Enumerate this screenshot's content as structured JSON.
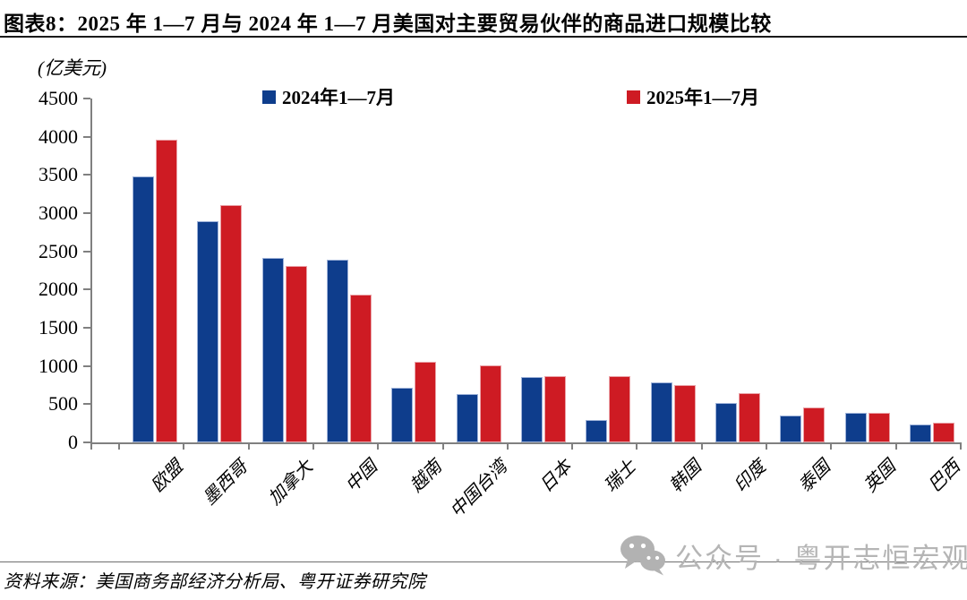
{
  "page": {
    "title": "图表8：2025 年 1—7 月与 2024 年 1—7 月美国对主要贸易伙伴的商品进口规模比较",
    "source": "资料来源：美国商务部经济分析局、粤开证券研究院",
    "watermark_text": "公众号 · 粤开志恒宏观"
  },
  "chart_data": {
    "type": "bar",
    "title": "2025年1—7月与2024年1—7月美国对主要贸易伙伴的商品进口规模比较",
    "unit_label": "(亿美元)",
    "categories": [
      "欧盟",
      "墨西哥",
      "加拿大",
      "中国",
      "越南",
      "中国台湾",
      "日本",
      "瑞士",
      "韩国",
      "印度",
      "泰国",
      "英国",
      "巴西"
    ],
    "series": [
      {
        "name": "2024年1—7月",
        "color": "#0E3D8C",
        "edge": "#9fb3d9",
        "values": [
          3480,
          2900,
          2410,
          2390,
          720,
          630,
          850,
          290,
          780,
          520,
          350,
          390,
          240
        ]
      },
      {
        "name": "2025年1—7月",
        "color": "#CE1B23",
        "edge": "#eaa3a8",
        "values": [
          3960,
          3100,
          2310,
          1930,
          1050,
          1010,
          870,
          870,
          750,
          650,
          460,
          390,
          260
        ]
      }
    ],
    "ylabel": "",
    "xlabel": "",
    "ylim": [
      0,
      4500
    ],
    "y_ticks": [
      0,
      500,
      1000,
      1500,
      2000,
      2500,
      3000,
      3500,
      4000,
      4500
    ],
    "grid": false,
    "legend_position": "top",
    "axis_color": "#808080"
  }
}
